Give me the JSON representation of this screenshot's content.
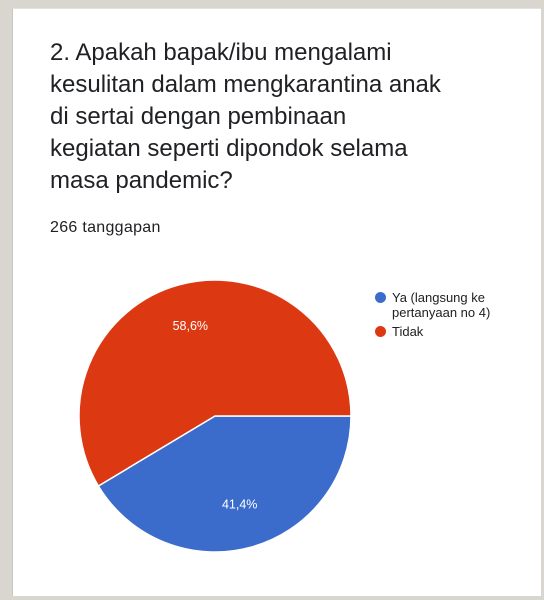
{
  "question": {
    "title": "2. Apakah bapak/ibu mengalami\nkesulitan dalam mengkarantina anak\ndi sertai dengan pembinaan\nkegiatan seperti dipondok selama\nmasa pandemic?",
    "responses": "266 tanggapan"
  },
  "chart_data": {
    "type": "pie",
    "title": "2. Apakah bapak/ibu mengalami kesulitan dalam mengkarantina anak di sertai dengan pembinaan kegiatan seperti dipondok selama masa pandemic?",
    "categories": [
      "Ya (langsung ke pertanyaan no 4)",
      "Tidak"
    ],
    "values": [
      41.4,
      58.6
    ],
    "value_labels": [
      "41,4%",
      "58,6%"
    ],
    "colors": [
      "#3b6ccb",
      "#dc3912"
    ],
    "legend_position": "right"
  }
}
